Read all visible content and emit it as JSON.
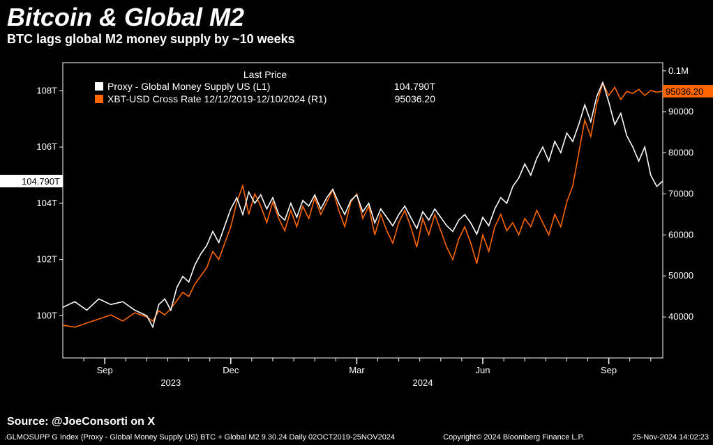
{
  "title": "Bitcoin & Global M2",
  "subtitle": "BTC lags global M2 money supply by ~10 weeks",
  "source": "Source: @JoeConsorti on X",
  "footer_left": ".GLMOSUPP G Index (Proxy - Global Money Supply US) BTC + Global M2 9.30.24  Daily 02OCT2019-25NOV2024",
  "footer_center": "Copyright© 2024 Bloomberg Finance L.P.",
  "footer_right": "25-Nov-2024 14:02:23",
  "legend": {
    "header": "Last Price",
    "series1_marker_color": "#ffffff",
    "series1_label": "Proxy - Global Money Supply US  (L1)",
    "series1_value": "104.790T",
    "series2_marker_color": "#ff6600",
    "series2_label": "XBT-USD Cross Rate 12/12/2019-12/10/2024  (R1)",
    "series2_value": "95036.20"
  },
  "chart": {
    "background": "#000000",
    "grid_color": "#ffffff",
    "axis_color": "#ffffff",
    "series1_color": "#ffffff",
    "series2_color": "#ff6600",
    "left_axis": {
      "ticks": [
        100,
        102,
        104,
        106,
        108
      ],
      "tick_labels": [
        "100T",
        "102T",
        "104T",
        "106T",
        "108T"
      ],
      "min": 98.5,
      "max": 109,
      "current_value": 104.79,
      "current_label": "104.790T"
    },
    "right_axis": {
      "ticks": [
        40000,
        50000,
        60000,
        70000,
        80000,
        90000,
        100000
      ],
      "tick_labels": [
        "40000",
        "50000",
        "60000",
        "70000",
        "80000",
        "90000",
        "0.1M"
      ],
      "min": 30000,
      "max": 102000,
      "current_value": 95036.2,
      "current_label": "95036.20",
      "tag_color": "#ff6600"
    },
    "x_axis": {
      "major_labels": [
        "Sep",
        "Dec",
        "Mar",
        "Jun",
        "Sep"
      ],
      "major_positions": [
        0.07,
        0.28,
        0.49,
        0.7,
        0.91
      ],
      "year_labels": [
        "2023",
        "2024"
      ],
      "year_positions": [
        0.18,
        0.6
      ],
      "minor_ticks": [
        0.035,
        0.07,
        0.105,
        0.14,
        0.175,
        0.21,
        0.245,
        0.28,
        0.315,
        0.35,
        0.385,
        0.42,
        0.455,
        0.49,
        0.525,
        0.56,
        0.595,
        0.63,
        0.665,
        0.7,
        0.735,
        0.77,
        0.805,
        0.84,
        0.875,
        0.91,
        0.945,
        0.98
      ]
    },
    "series1_data": [
      [
        0.0,
        100.3
      ],
      [
        0.02,
        100.5
      ],
      [
        0.04,
        100.2
      ],
      [
        0.06,
        100.6
      ],
      [
        0.08,
        100.4
      ],
      [
        0.1,
        100.5
      ],
      [
        0.12,
        100.2
      ],
      [
        0.14,
        100.0
      ],
      [
        0.15,
        99.6
      ],
      [
        0.16,
        100.4
      ],
      [
        0.17,
        100.6
      ],
      [
        0.18,
        100.2
      ],
      [
        0.19,
        101.0
      ],
      [
        0.2,
        101.4
      ],
      [
        0.21,
        101.2
      ],
      [
        0.22,
        101.8
      ],
      [
        0.23,
        102.2
      ],
      [
        0.24,
        102.5
      ],
      [
        0.25,
        103.0
      ],
      [
        0.26,
        102.6
      ],
      [
        0.27,
        103.2
      ],
      [
        0.28,
        103.8
      ],
      [
        0.29,
        104.2
      ],
      [
        0.3,
        103.6
      ],
      [
        0.31,
        104.4
      ],
      [
        0.32,
        104.0
      ],
      [
        0.33,
        104.3
      ],
      [
        0.34,
        103.8
      ],
      [
        0.35,
        104.2
      ],
      [
        0.36,
        103.6
      ],
      [
        0.37,
        103.4
      ],
      [
        0.38,
        104.0
      ],
      [
        0.39,
        103.5
      ],
      [
        0.4,
        104.1
      ],
      [
        0.41,
        103.9
      ],
      [
        0.42,
        104.3
      ],
      [
        0.43,
        103.8
      ],
      [
        0.44,
        104.2
      ],
      [
        0.45,
        104.5
      ],
      [
        0.46,
        104.0
      ],
      [
        0.47,
        103.6
      ],
      [
        0.48,
        104.1
      ],
      [
        0.49,
        104.3
      ],
      [
        0.5,
        103.7
      ],
      [
        0.51,
        104.0
      ],
      [
        0.52,
        103.3
      ],
      [
        0.53,
        103.8
      ],
      [
        0.54,
        103.5
      ],
      [
        0.55,
        103.2
      ],
      [
        0.56,
        103.6
      ],
      [
        0.57,
        103.9
      ],
      [
        0.58,
        103.5
      ],
      [
        0.59,
        103.1
      ],
      [
        0.6,
        103.7
      ],
      [
        0.61,
        103.4
      ],
      [
        0.62,
        103.8
      ],
      [
        0.63,
        103.5
      ],
      [
        0.64,
        103.2
      ],
      [
        0.65,
        103.0
      ],
      [
        0.66,
        103.4
      ],
      [
        0.67,
        103.6
      ],
      [
        0.68,
        103.3
      ],
      [
        0.69,
        102.9
      ],
      [
        0.7,
        103.5
      ],
      [
        0.71,
        103.2
      ],
      [
        0.72,
        103.8
      ],
      [
        0.73,
        104.2
      ],
      [
        0.74,
        104.0
      ],
      [
        0.75,
        104.6
      ],
      [
        0.76,
        104.9
      ],
      [
        0.77,
        105.4
      ],
      [
        0.78,
        105.0
      ],
      [
        0.79,
        105.6
      ],
      [
        0.8,
        106.0
      ],
      [
        0.81,
        105.5
      ],
      [
        0.82,
        106.2
      ],
      [
        0.83,
        105.8
      ],
      [
        0.84,
        106.5
      ],
      [
        0.85,
        106.2
      ],
      [
        0.86,
        106.8
      ],
      [
        0.87,
        107.5
      ],
      [
        0.88,
        106.9
      ],
      [
        0.89,
        107.8
      ],
      [
        0.9,
        108.3
      ],
      [
        0.91,
        107.6
      ],
      [
        0.92,
        106.8
      ],
      [
        0.93,
        107.2
      ],
      [
        0.94,
        106.4
      ],
      [
        0.95,
        106.0
      ],
      [
        0.96,
        105.5
      ],
      [
        0.97,
        106.0
      ],
      [
        0.98,
        105.0
      ],
      [
        0.99,
        104.6
      ],
      [
        1.0,
        104.79
      ]
    ],
    "series2_data": [
      [
        0.0,
        38000
      ],
      [
        0.02,
        37500
      ],
      [
        0.04,
        38500
      ],
      [
        0.06,
        39500
      ],
      [
        0.08,
        40500
      ],
      [
        0.1,
        39000
      ],
      [
        0.12,
        41000
      ],
      [
        0.14,
        40000
      ],
      [
        0.15,
        39000
      ],
      [
        0.16,
        41500
      ],
      [
        0.17,
        40500
      ],
      [
        0.18,
        42000
      ],
      [
        0.19,
        44000
      ],
      [
        0.2,
        46000
      ],
      [
        0.21,
        45000
      ],
      [
        0.22,
        48000
      ],
      [
        0.23,
        50000
      ],
      [
        0.24,
        52000
      ],
      [
        0.25,
        56000
      ],
      [
        0.26,
        54000
      ],
      [
        0.27,
        58000
      ],
      [
        0.28,
        62000
      ],
      [
        0.29,
        68000
      ],
      [
        0.3,
        72000
      ],
      [
        0.31,
        65000
      ],
      [
        0.32,
        70000
      ],
      [
        0.33,
        67000
      ],
      [
        0.34,
        63000
      ],
      [
        0.35,
        68000
      ],
      [
        0.36,
        64000
      ],
      [
        0.37,
        61000
      ],
      [
        0.38,
        66000
      ],
      [
        0.39,
        62000
      ],
      [
        0.4,
        67000
      ],
      [
        0.41,
        64000
      ],
      [
        0.42,
        69000
      ],
      [
        0.43,
        65000
      ],
      [
        0.44,
        68000
      ],
      [
        0.45,
        71000
      ],
      [
        0.46,
        66000
      ],
      [
        0.47,
        62000
      ],
      [
        0.48,
        68000
      ],
      [
        0.49,
        70000
      ],
      [
        0.5,
        64000
      ],
      [
        0.51,
        67000
      ],
      [
        0.52,
        60000
      ],
      [
        0.53,
        65000
      ],
      [
        0.54,
        61000
      ],
      [
        0.55,
        58000
      ],
      [
        0.56,
        63000
      ],
      [
        0.57,
        66000
      ],
      [
        0.58,
        62000
      ],
      [
        0.59,
        57000
      ],
      [
        0.6,
        64000
      ],
      [
        0.61,
        60000
      ],
      [
        0.62,
        65000
      ],
      [
        0.63,
        61000
      ],
      [
        0.64,
        57000
      ],
      [
        0.65,
        54000
      ],
      [
        0.66,
        59000
      ],
      [
        0.67,
        62000
      ],
      [
        0.68,
        58000
      ],
      [
        0.69,
        53000
      ],
      [
        0.7,
        60000
      ],
      [
        0.71,
        56000
      ],
      [
        0.72,
        62000
      ],
      [
        0.73,
        65000
      ],
      [
        0.74,
        61000
      ],
      [
        0.75,
        63000
      ],
      [
        0.76,
        60000
      ],
      [
        0.77,
        64000
      ],
      [
        0.78,
        62000
      ],
      [
        0.79,
        66000
      ],
      [
        0.8,
        63000
      ],
      [
        0.81,
        60000
      ],
      [
        0.82,
        65000
      ],
      [
        0.83,
        62000
      ],
      [
        0.84,
        68000
      ],
      [
        0.85,
        72000
      ],
      [
        0.86,
        80000
      ],
      [
        0.87,
        88000
      ],
      [
        0.88,
        84000
      ],
      [
        0.89,
        92000
      ],
      [
        0.9,
        97000
      ],
      [
        0.91,
        94000
      ],
      [
        0.92,
        96000
      ],
      [
        0.93,
        93000
      ],
      [
        0.94,
        95000
      ],
      [
        0.95,
        94500
      ],
      [
        0.96,
        95500
      ],
      [
        0.97,
        94000
      ],
      [
        0.98,
        95200
      ],
      [
        0.99,
        94800
      ],
      [
        1.0,
        95036.2
      ]
    ]
  }
}
